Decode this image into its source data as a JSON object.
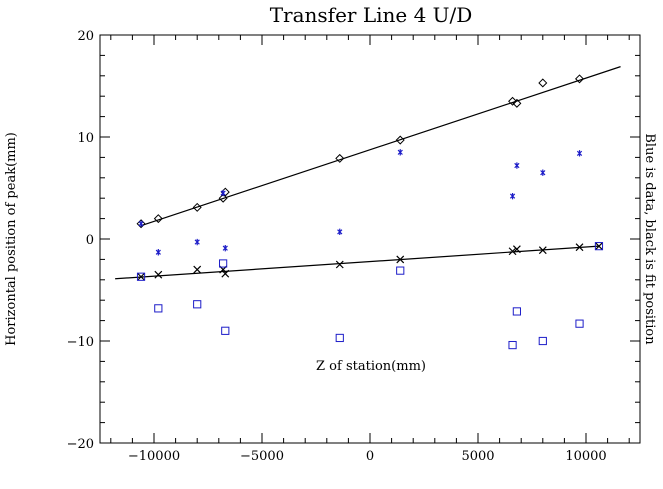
{
  "chart_data": {
    "type": "scatter",
    "title": "Transfer Line 4 U/D",
    "xlabel": "Z of station(mm)",
    "ylabel": "Horizontal position of peak(mm)",
    "right_label": "Blue is data, black is fit position",
    "xlim": [
      -12500,
      12500
    ],
    "ylim": [
      -20,
      20
    ],
    "x_major_ticks": [
      -10000,
      -5000,
      0,
      5000,
      10000
    ],
    "x_tick_labels": [
      "−10000",
      "−5000",
      "0",
      "5000",
      "10000"
    ],
    "y_major_ticks": [
      -20,
      -10,
      0,
      10,
      20
    ],
    "y_tick_labels": [
      "−20",
      "−10",
      "0",
      "10",
      "20"
    ],
    "x_minor_step": 1000,
    "y_minor_step": 2,
    "grid": false,
    "colors": {
      "data": "#1c1cc8",
      "fit": "#000000"
    },
    "series": [
      {
        "marker": "diamond",
        "color": "#000000",
        "points": [
          [
            -10600,
            1.5
          ],
          [
            -9800,
            2.0
          ],
          [
            -8000,
            3.1
          ],
          [
            -6800,
            4.0
          ],
          [
            -6700,
            4.6
          ],
          [
            -1400,
            7.9
          ],
          [
            1400,
            9.7
          ],
          [
            6600,
            13.5
          ],
          [
            6800,
            13.3
          ],
          [
            8000,
            15.3
          ],
          [
            9700,
            15.7
          ]
        ]
      },
      {
        "marker": "cross",
        "color": "#000000",
        "points": [
          [
            -10600,
            -3.7
          ],
          [
            -9800,
            -3.5
          ],
          [
            -8000,
            -3.0
          ],
          [
            -6800,
            -3.0
          ],
          [
            -6700,
            -3.4
          ],
          [
            -1400,
            -2.5
          ],
          [
            1400,
            -2.0
          ],
          [
            6600,
            -1.2
          ],
          [
            6800,
            -1.0
          ],
          [
            8000,
            -1.1
          ],
          [
            9700,
            -0.8
          ],
          [
            10600,
            -0.7
          ]
        ]
      },
      {
        "marker": "star",
        "color": "#1c1cc8",
        "points": [
          [
            -10600,
            1.5
          ],
          [
            -9800,
            -1.3
          ],
          [
            -8000,
            -0.3
          ],
          [
            -6800,
            4.5
          ],
          [
            -6700,
            -0.9
          ],
          [
            -1400,
            0.7
          ],
          [
            1400,
            8.5
          ],
          [
            6600,
            4.2
          ],
          [
            6800,
            7.2
          ],
          [
            8000,
            6.5
          ],
          [
            9700,
            8.4
          ]
        ]
      },
      {
        "marker": "square",
        "color": "#1c1cc8",
        "points": [
          [
            -10600,
            -3.7
          ],
          [
            -9800,
            -6.8
          ],
          [
            -8000,
            -6.4
          ],
          [
            -6800,
            -2.4
          ],
          [
            -6700,
            -9.0
          ],
          [
            -1400,
            -9.7
          ],
          [
            1400,
            -3.1
          ],
          [
            6600,
            -10.4
          ],
          [
            6800,
            -7.1
          ],
          [
            8000,
            -10.0
          ],
          [
            9700,
            -8.3
          ],
          [
            10600,
            -0.7
          ]
        ]
      }
    ],
    "fit_lines": [
      {
        "x": [
          -10600,
          11600
        ],
        "y": [
          1.3,
          16.9
        ]
      },
      {
        "x": [
          -11800,
          10600
        ],
        "y": [
          -3.9,
          -0.7
        ]
      }
    ]
  }
}
